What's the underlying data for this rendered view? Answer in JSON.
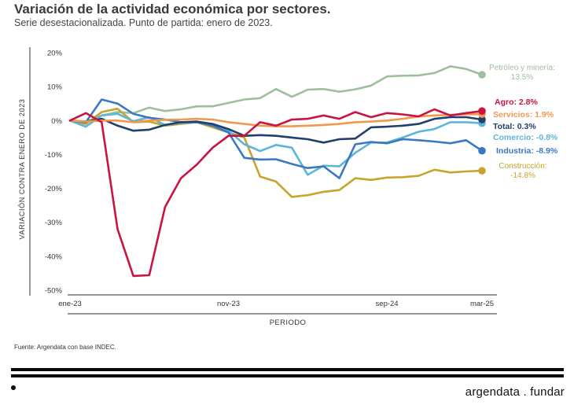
{
  "header": {
    "title": "Variación de la actividad económica por sectores.",
    "subtitle": "Serie desestacionalizada. Punto de partida: enero de 2023."
  },
  "footer": {
    "source": "Fuente: Argendata con base INDEC.",
    "brand": "argendata . fundar"
  },
  "chart_data": {
    "type": "line",
    "xlabel": "PERIODO",
    "ylabel": "VARIACIÓN CONTRA ENERO DE 2023",
    "x_tick_labels": [
      {
        "index": 0,
        "label": "ene-23"
      },
      {
        "index": 10,
        "label": "nov-23"
      },
      {
        "index": 20,
        "label": "sep-24"
      },
      {
        "index": 26,
        "label": "mar-25"
      }
    ],
    "y_ticks": [
      20,
      10,
      0,
      -10,
      -20,
      -30,
      -40,
      -50
    ],
    "y_tick_labels": [
      "20%",
      "10%",
      "0%",
      "-10%",
      "-20%",
      "-30%",
      "-40%",
      "-50%"
    ],
    "ylim": [
      -50,
      20
    ],
    "x_range": [
      0,
      26
    ],
    "grid": false,
    "series": [
      {
        "name": "Petróleo y minería",
        "label": "Petróleo y minería:",
        "value_label": "13.5%",
        "color": "#9dbf9e",
        "values": [
          0,
          -0.5,
          1.5,
          2.5,
          2.2,
          3.8,
          2.8,
          3.3,
          4.2,
          4.2,
          5.2,
          6.2,
          6.6,
          9.3,
          7.0,
          9.1,
          9.3,
          8.5,
          9.2,
          10.3,
          13.0,
          13.2,
          13.3,
          14.0,
          16.0,
          15.2,
          13.5
        ]
      },
      {
        "name": "Construcción",
        "label": "Construcción:",
        "value_label": "-14.8%",
        "color": "#c8a42c",
        "values": [
          0,
          -1.0,
          2.5,
          3.5,
          -0.5,
          -0.3,
          -1.5,
          -1.0,
          -0.5,
          -2.0,
          -3.5,
          -5.0,
          -16.5,
          -18.0,
          -22.5,
          -22.0,
          -21.0,
          -20.5,
          -17.0,
          -17.5,
          -16.8,
          -16.7,
          -16.3,
          -14.5,
          -15.3,
          -15.0,
          -14.8
        ]
      },
      {
        "name": "Comercio",
        "label": "Comercio:",
        "value_label": "-0.8%",
        "color": "#5db5d8",
        "values": [
          0,
          -1.8,
          1.5,
          2.0,
          -0.2,
          1.0,
          -1.3,
          -0.7,
          -0.5,
          -1.3,
          -3.0,
          -7.0,
          -9.0,
          -7.2,
          -8.0,
          -16.0,
          -13.3,
          -13.5,
          -9.5,
          -6.5,
          -6.5,
          -5.0,
          -3.3,
          -2.5,
          -0.5,
          -0.5,
          -0.8
        ]
      },
      {
        "name": "Industria",
        "label": "Industria:",
        "value_label": "-8.9%",
        "color": "#3b78c2",
        "values": [
          0,
          -0.5,
          6.2,
          5.0,
          2.0,
          0.8,
          0.3,
          -0.5,
          -0.5,
          -1.5,
          -3.5,
          -11.0,
          -11.5,
          -11.4,
          -12.8,
          -14.0,
          -13.5,
          -17.0,
          -7.0,
          -6.3,
          -6.7,
          -5.5,
          -5.8,
          -6.2,
          -6.7,
          -5.8,
          -8.9
        ]
      },
      {
        "name": "Total",
        "label": "Total:",
        "value_label": "0.3%",
        "color": "#223f6b",
        "values": [
          0,
          -0.3,
          0.5,
          -1.5,
          -3.0,
          -2.7,
          -1.3,
          -0.5,
          -0.3,
          -1.0,
          -2.5,
          -4.5,
          -4.3,
          -4.5,
          -5.0,
          -5.5,
          -6.5,
          -5.5,
          -5.3,
          -2.0,
          -1.8,
          -1.5,
          -1.0,
          0.5,
          1.0,
          1.0,
          0.3
        ]
      },
      {
        "name": "Servicios",
        "label": "Servicios:",
        "value_label": "1.9%",
        "color": "#f0984e",
        "values": [
          0,
          -0.3,
          0,
          0,
          -0.5,
          0,
          0.2,
          0.3,
          0.5,
          0.3,
          -0.5,
          -1.0,
          -1.5,
          -1.7,
          -1.7,
          -1.5,
          -1.3,
          -1.0,
          -0.5,
          -0.3,
          0,
          0.5,
          1.2,
          1.5,
          1.7,
          1.8,
          1.9
        ]
      },
      {
        "name": "Agro",
        "label": "Agro:",
        "value_label": "2.8%",
        "color": "#c91443",
        "values": [
          0,
          2.2,
          -0.5,
          -32.0,
          -45.8,
          -45.6,
          -25.5,
          -17.0,
          -13.0,
          -8.0,
          -4.5,
          -4.5,
          -0.5,
          -1.5,
          0.3,
          0.5,
          1.5,
          0.5,
          2.5,
          1.0,
          2.2,
          1.8,
          1.2,
          3.3,
          1.5,
          2.2,
          2.8
        ]
      }
    ]
  }
}
